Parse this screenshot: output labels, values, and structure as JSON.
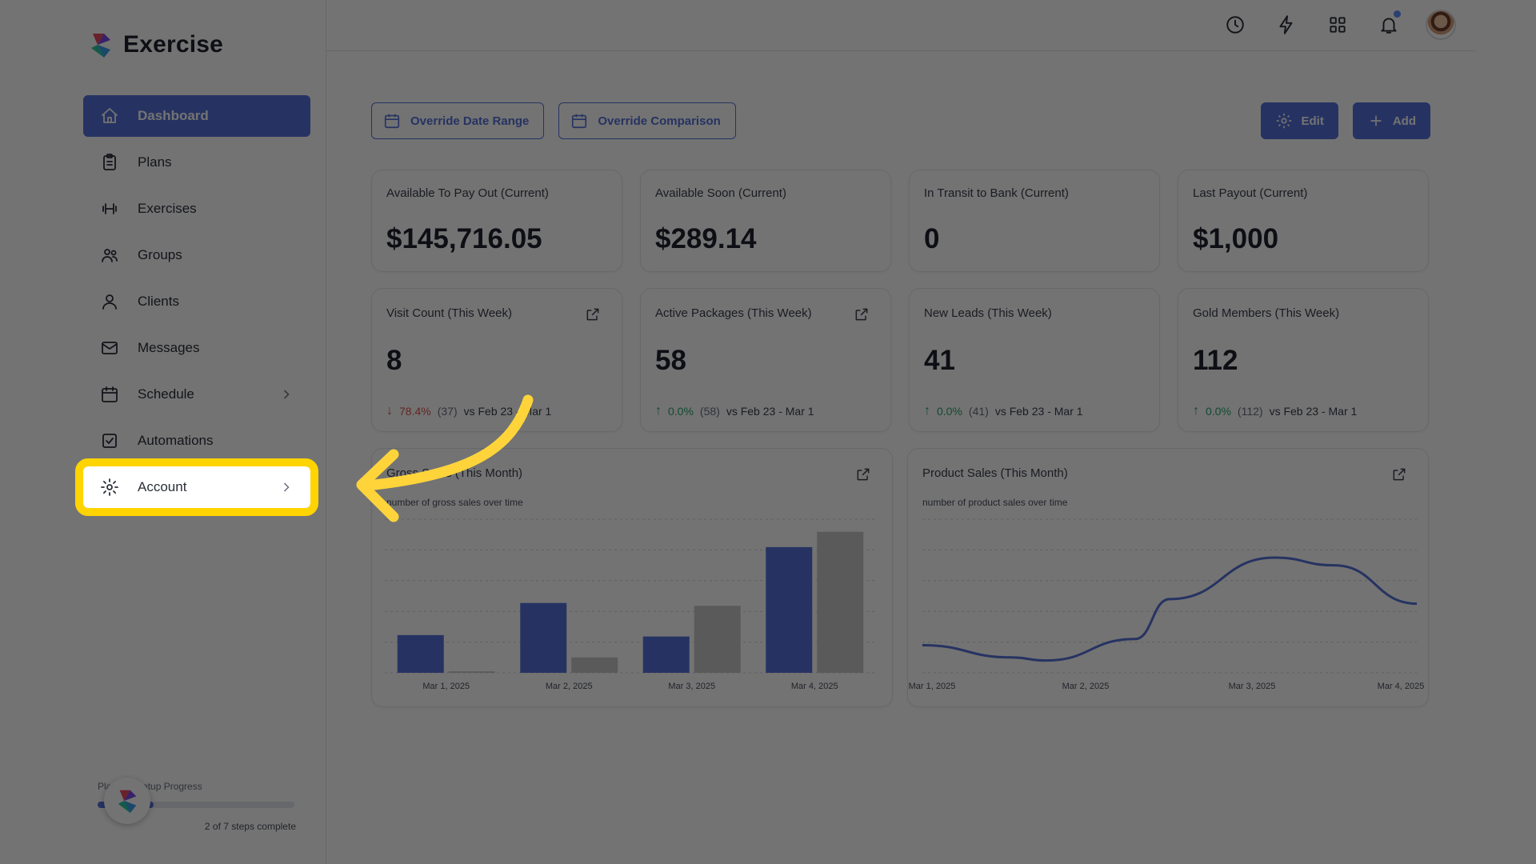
{
  "brand": {
    "name": "Exercise"
  },
  "sidebar": {
    "items": [
      {
        "label": "Dashboard",
        "icon": "home-icon",
        "active": true
      },
      {
        "label": "Plans",
        "icon": "clipboard-icon"
      },
      {
        "label": "Exercises",
        "icon": "dumbbell-icon"
      },
      {
        "label": "Groups",
        "icon": "users-icon"
      },
      {
        "label": "Clients",
        "icon": "user-icon"
      },
      {
        "label": "Messages",
        "icon": "mail-icon"
      },
      {
        "label": "Schedule",
        "icon": "calendar-icon",
        "chevron": true
      },
      {
        "label": "Automations",
        "icon": "check-square-icon"
      },
      {
        "label": "Account",
        "icon": "gear-icon",
        "chevron": true,
        "highlighted": true
      }
    ]
  },
  "setup": {
    "label": "Platform Setup Progress",
    "steps_text": "2 of 7 steps complete",
    "completed": 2,
    "total": 7
  },
  "toolbar": {
    "override_date_range": "Override Date Range",
    "override_comparison": "Override Comparison",
    "edit": "Edit",
    "add": "Add"
  },
  "stats": [
    {
      "title": "Available To Pay Out (Current)",
      "value": "$145,716.05"
    },
    {
      "title": "Available Soon (Current)",
      "value": "$289.14"
    },
    {
      "title": "In Transit to Bank (Current)",
      "value": "0"
    },
    {
      "title": "Last Payout (Current)",
      "value": "$1,000"
    }
  ],
  "weekly": [
    {
      "title": "Visit Count (This Week)",
      "value": "8",
      "direction": "down",
      "pct": "78.4%",
      "prev": "(37)",
      "vs": "vs Feb 23 - Mar 1",
      "link": true
    },
    {
      "title": "Active Packages (This Week)",
      "value": "58",
      "direction": "up",
      "pct": "0.0%",
      "prev": "(58)",
      "vs": "vs Feb 23 - Mar 1",
      "link": true
    },
    {
      "title": "New Leads (This Week)",
      "value": "41",
      "direction": "up",
      "pct": "0.0%",
      "prev": "(41)",
      "vs": "vs Feb 23 - Mar 1",
      "link": false
    },
    {
      "title": "Gold Members (This Week)",
      "value": "112",
      "direction": "up",
      "pct": "0.0%",
      "prev": "(112)",
      "vs": "vs Feb 23 - Mar 1",
      "link": false
    }
  ],
  "charts": {
    "gross": {
      "title": "Gross Sales (This Month)",
      "subtitle": "number of gross sales over time"
    },
    "product": {
      "title": "Product Sales (This Month)",
      "subtitle": "number of product sales over time"
    }
  },
  "colors": {
    "accent": "#5672d9",
    "grey_bar": "#c8c8c8",
    "highlight": "#ffd400"
  },
  "chart_data": [
    {
      "type": "bar",
      "title": "Gross Sales (This Month)",
      "subtitle": "number of gross sales over time",
      "categories": [
        "Mar 1, 2025",
        "Mar 2, 2025",
        "Mar 3, 2025",
        "Mar 4, 2025"
      ],
      "series": [
        {
          "values": [
            27,
            50,
            26,
            90
          ],
          "color": "#5672d9"
        },
        {
          "values": [
            1,
            11,
            48,
            101
          ],
          "color": "#c8c8c8"
        }
      ],
      "ylim": [
        0,
        110
      ],
      "grid": true
    },
    {
      "type": "line",
      "title": "Product Sales (This Month)",
      "subtitle": "number of product sales over time",
      "categories": [
        "Mar 1, 2025",
        "Mar 2, 2025",
        "Mar 3, 2025",
        "Mar 4, 2025"
      ],
      "x": [
        0,
        0.72,
        1,
        1.72,
        2,
        2.85,
        3.33,
        4
      ],
      "y": [
        18,
        10,
        8,
        22,
        48,
        75,
        70,
        45
      ],
      "ylim": [
        0,
        100
      ],
      "grid": true
    }
  ]
}
